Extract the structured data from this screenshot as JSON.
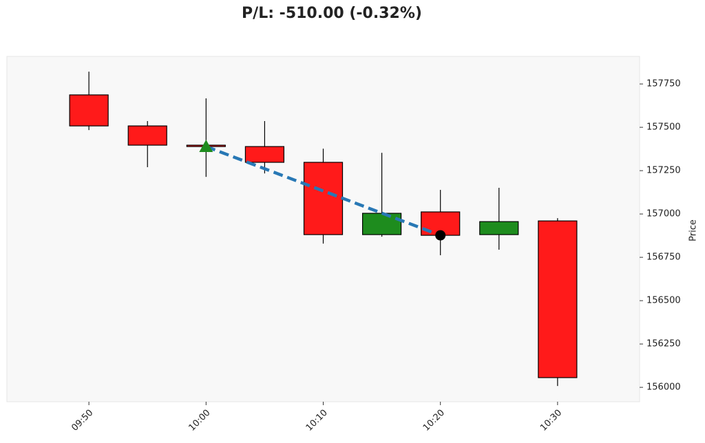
{
  "chart_data": {
    "type": "candlestick",
    "title": "P/L: -510.00 (-0.32%)",
    "y_label": "Price",
    "x": [
      "09:50",
      "09:55",
      "10:00",
      "10:05",
      "10:10",
      "10:15",
      "10:20",
      "10:25",
      "10:30"
    ],
    "open": [
      157687,
      157508,
      157397,
      157389,
      157298,
      156881,
      157012,
      156881,
      156960
    ],
    "high": [
      157821,
      157536,
      157667,
      157536,
      157377,
      157353,
      157139,
      157151,
      156976
    ],
    "low": [
      157484,
      157270,
      157214,
      157234,
      156829,
      156869,
      156762,
      156794,
      156008
    ],
    "close": [
      157508,
      157397,
      157389,
      157298,
      156881,
      157004,
      156877,
      156956,
      156056
    ],
    "up_color": "#1e8c1e",
    "down_color": "#ff1a1a",
    "xlim": [
      "09:43",
      "10:37"
    ],
    "xticks": [
      "09:50",
      "10:00",
      "10:10",
      "10:20",
      "10:30"
    ],
    "ylim": [
      155917,
      157909
    ],
    "yticks": [
      156000,
      156250,
      156500,
      156750,
      157000,
      157250,
      157500,
      157750
    ],
    "trade": {
      "entry": {
        "x": "10:00",
        "price": 157389,
        "color": "#1e8c1e"
      },
      "exit": {
        "x": "10:20",
        "price": 156877,
        "color": "#000000"
      },
      "line_color": "#2878b5"
    }
  }
}
